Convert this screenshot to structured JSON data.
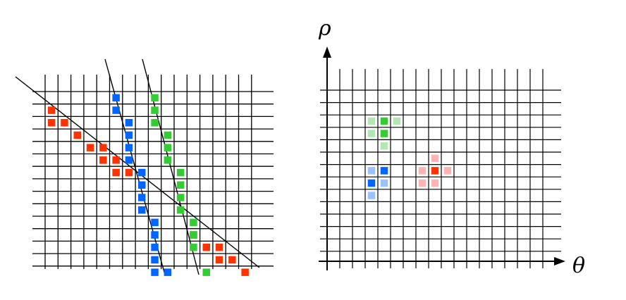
{
  "left_panel": {
    "title": "",
    "points": {
      "red": [
        [
          1,
          1
        ],
        [
          1,
          2
        ],
        [
          2,
          2
        ],
        [
          3,
          3
        ],
        [
          4,
          4
        ],
        [
          5,
          4
        ],
        [
          5,
          5
        ],
        [
          6,
          5
        ],
        [
          6,
          6
        ],
        [
          7,
          6
        ],
        [
          8,
          7
        ],
        [
          12,
          11
        ],
        [
          13,
          12
        ],
        [
          14,
          12
        ],
        [
          14,
          13
        ],
        [
          15,
          13
        ],
        [
          16,
          14
        ]
      ],
      "blue": [
        [
          6,
          0
        ],
        [
          6,
          1
        ],
        [
          7,
          2
        ],
        [
          7,
          3
        ],
        [
          7,
          4
        ],
        [
          7,
          5
        ],
        [
          8,
          6
        ],
        [
          8,
          7
        ],
        [
          8,
          8
        ],
        [
          8,
          9
        ],
        [
          9,
          10
        ],
        [
          9,
          11
        ],
        [
          9,
          12
        ],
        [
          9,
          13
        ],
        [
          9,
          14
        ],
        [
          10,
          14
        ]
      ],
      "green": [
        [
          9,
          0
        ],
        [
          9,
          1
        ],
        [
          9,
          2
        ],
        [
          10,
          3
        ],
        [
          10,
          4
        ],
        [
          10,
          5
        ],
        [
          11,
          6
        ],
        [
          11,
          7
        ],
        [
          11,
          8
        ],
        [
          11,
          9
        ],
        [
          12,
          10
        ],
        [
          12,
          11
        ],
        [
          12,
          12
        ],
        [
          13,
          14
        ]
      ]
    }
  },
  "right_panel": {
    "x_axis_label": "θ",
    "y_axis_label": "ρ",
    "peaks": {
      "green": {
        "strong": [
          [
            4,
            3
          ],
          [
            4,
            4
          ]
        ],
        "weak": [
          [
            3,
            3
          ],
          [
            5,
            3
          ],
          [
            3,
            4
          ],
          [
            4,
            5
          ]
        ]
      },
      "blue": {
        "strong": [
          [
            4,
            7
          ],
          [
            3,
            8
          ]
        ],
        "weak": [
          [
            3,
            7
          ],
          [
            4,
            8
          ],
          [
            3,
            9
          ]
        ]
      },
      "red": {
        "strong": [
          [
            8,
            7
          ]
        ],
        "weak": [
          [
            8,
            6
          ],
          [
            7,
            7
          ],
          [
            9,
            7
          ],
          [
            7,
            8
          ],
          [
            8,
            8
          ]
        ]
      }
    }
  },
  "colors": {
    "red": "#ff3300",
    "blue": "#0066ff",
    "green": "#33cc33",
    "red_light": "#ffb3b3",
    "blue_light": "#99c2ff",
    "green_light": "#b3e6b3",
    "grid": "#000000"
  }
}
